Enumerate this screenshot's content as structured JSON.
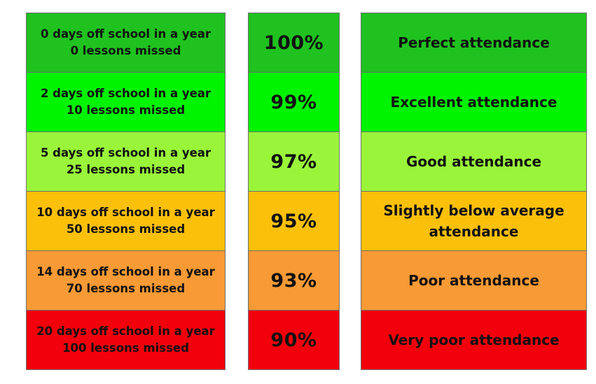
{
  "rows": [
    {
      "days_line": "0 days off school in a year",
      "lessons_line": "0 lessons missed",
      "percent": "100%",
      "description": "Perfect attendance",
      "color": "#1fc21f"
    },
    {
      "days_line": "2 days off school in a year",
      "lessons_line": "10 lessons missed",
      "percent": "99%",
      "description": "Excellent attendance",
      "color": "#00f400"
    },
    {
      "days_line": "5 days off school in a year",
      "lessons_line": "25 lessons missed",
      "percent": "97%",
      "description": "Good attendance",
      "color": "#9af53a"
    },
    {
      "days_line": "10 days off school in a year",
      "lessons_line": "50 lessons missed",
      "percent": "95%",
      "description": "Slightly below average attendance",
      "color": "#fbc009"
    },
    {
      "days_line": "14 days off school in a year",
      "lessons_line": "70 lessons missed",
      "percent": "93%",
      "description": "Poor attendance",
      "color": "#f89a35"
    },
    {
      "days_line": "20 days off school in a year",
      "lessons_line": "100 lessons missed",
      "percent": "90%",
      "description": "Very poor attendance",
      "color": "#f2000b"
    }
  ]
}
